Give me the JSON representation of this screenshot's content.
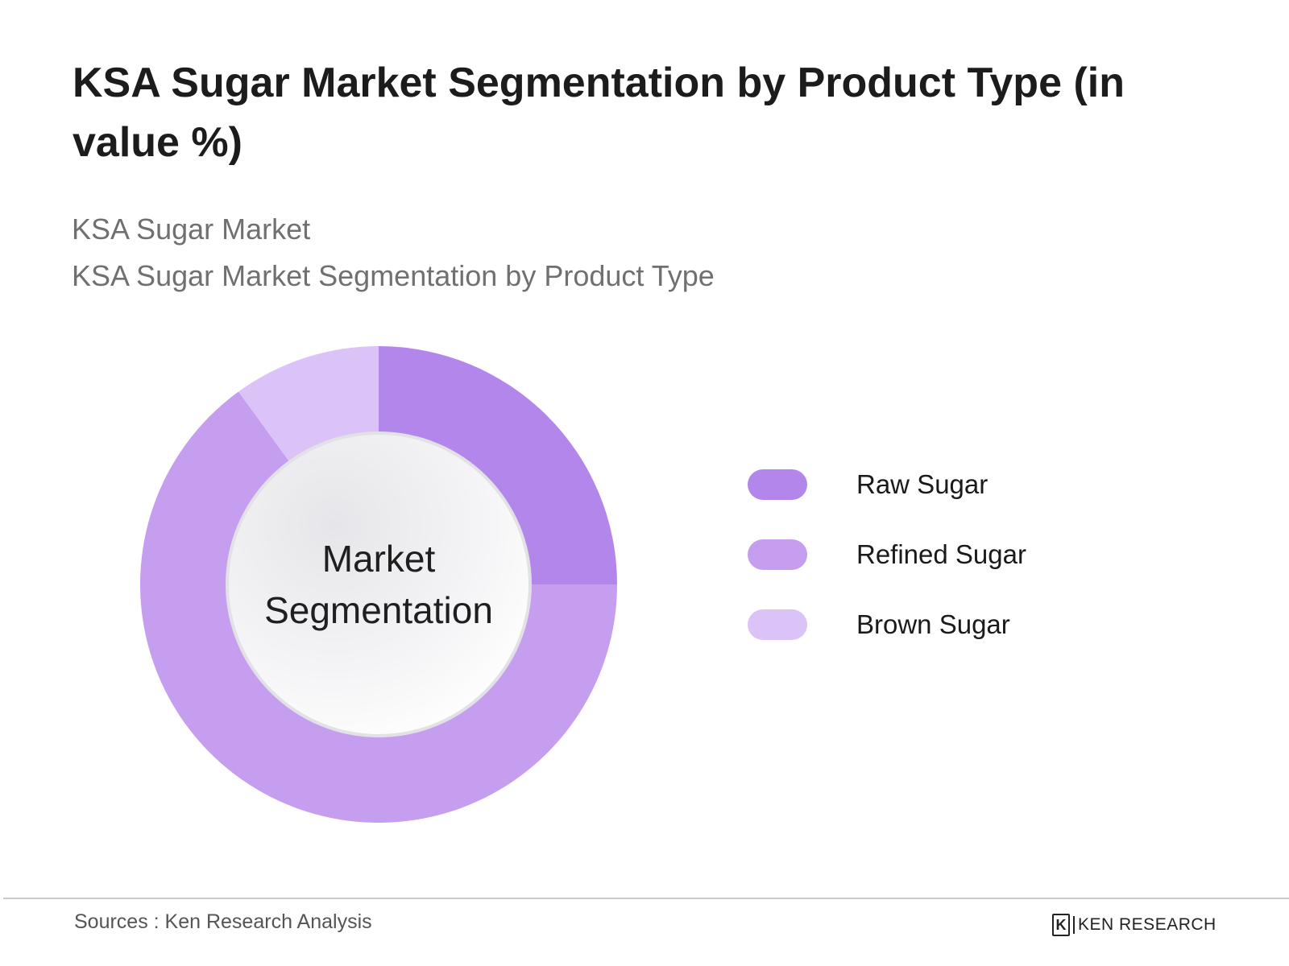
{
  "header": {
    "title": "KSA Sugar Market Segmentation by Product Type (in value %)",
    "subtitle_line1": "KSA Sugar Market",
    "subtitle_line2": "KSA Sugar Market Segmentation by Product Type"
  },
  "chart_data": {
    "type": "pie",
    "donut": true,
    "center_label_line1": "Market",
    "center_label_line2": "Segmentation",
    "categories": [
      "Raw Sugar",
      "Refined Sugar",
      "Brown Sugar"
    ],
    "values": [
      25,
      65,
      10
    ],
    "colors": [
      "#b386ec",
      "#c69ef0",
      "#dcc3f7"
    ],
    "legend_position": "right"
  },
  "footer": {
    "source": "Sources : Ken Research Analysis",
    "brand_mark": "K",
    "brand_name": "KEN RESEARCH"
  }
}
